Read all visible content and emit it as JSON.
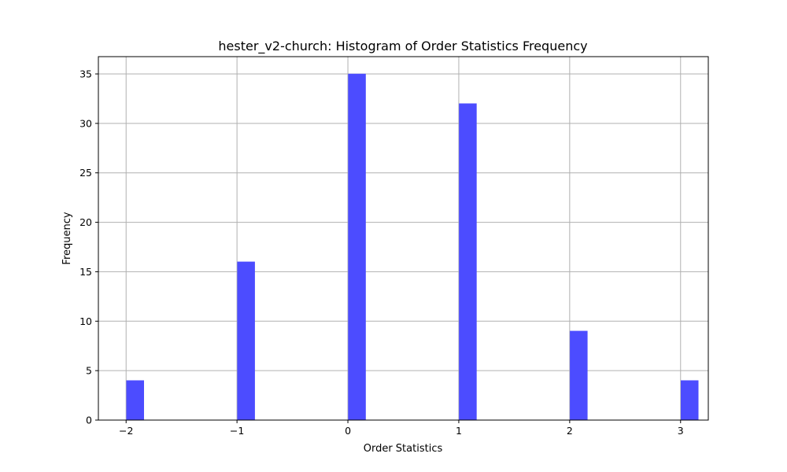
{
  "chart_data": {
    "type": "bar",
    "title": "hester_v2-church: Histogram of Order Statistics Frequency",
    "xlabel": "Order Statistics",
    "ylabel": "Frequency",
    "x": [
      -2,
      -1,
      0,
      1,
      2,
      3
    ],
    "values": [
      4,
      16,
      35,
      32,
      9,
      4
    ],
    "xlim": [
      -2.25,
      3.25
    ],
    "ylim": [
      0,
      36.75
    ],
    "xticks": [
      -2,
      -1,
      0,
      1,
      2,
      3
    ],
    "xtick_labels": [
      "−2",
      "−1",
      "0",
      "1",
      "2",
      "3"
    ],
    "yticks": [
      0,
      5,
      10,
      15,
      20,
      25,
      30,
      35
    ],
    "ytick_labels": [
      "0",
      "5",
      "10",
      "15",
      "20",
      "25",
      "30",
      "35"
    ],
    "grid": true,
    "bar_color": "#4c4cff",
    "edge_color": "#4b4bff",
    "grid_color": "#b0b0b0"
  }
}
